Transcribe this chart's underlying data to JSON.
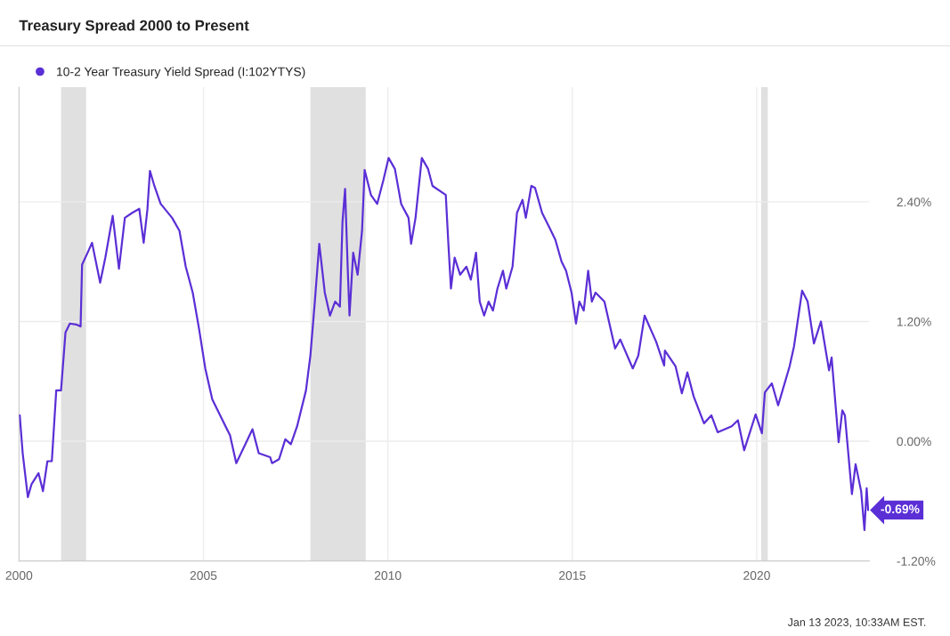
{
  "chart_data": {
    "type": "line",
    "title": "Treasury Spread 2000 to Present",
    "x": [
      2000.02,
      2000.1,
      2000.24,
      2000.34,
      2000.53,
      2000.65,
      2000.77,
      2000.89,
      2001.01,
      2001.14,
      2001.26,
      2001.38,
      2001.55,
      2001.67,
      2001.71,
      2001.86,
      2001.98,
      2002.2,
      2002.34,
      2002.54,
      2002.71,
      2002.87,
      2003.07,
      2003.26,
      2003.38,
      2003.48,
      2003.55,
      2003.67,
      2003.84,
      2004.15,
      2004.35,
      2004.52,
      2004.71,
      2004.88,
      2005.05,
      2005.24,
      2005.48,
      2005.72,
      2005.89,
      2006.33,
      2006.5,
      2006.81,
      2006.86,
      2007.05,
      2007.22,
      2007.37,
      2007.54,
      2007.78,
      2007.9,
      2008.02,
      2008.14,
      2008.29,
      2008.43,
      2008.57,
      2008.7,
      2008.77,
      2008.84,
      2008.91,
      2008.96,
      2009.06,
      2009.18,
      2009.3,
      2009.37,
      2009.54,
      2009.71,
      2009.88,
      2010.02,
      2010.19,
      2010.36,
      2010.56,
      2010.63,
      2010.75,
      2010.92,
      2011.09,
      2011.21,
      2011.57,
      2011.64,
      2011.71,
      2011.81,
      2011.96,
      2012.13,
      2012.25,
      2012.39,
      2012.49,
      2012.61,
      2012.73,
      2012.85,
      2012.97,
      2013.12,
      2013.21,
      2013.38,
      2013.5,
      2013.65,
      2013.74,
      2013.89,
      2013.99,
      2014.18,
      2014.37,
      2014.54,
      2014.71,
      2014.83,
      2014.98,
      2015.1,
      2015.19,
      2015.31,
      2015.43,
      2015.53,
      2015.63,
      2015.87,
      2016.16,
      2016.3,
      2016.64,
      2016.79,
      2016.96,
      2017.27,
      2017.49,
      2017.51,
      2017.8,
      2017.97,
      2018.12,
      2018.29,
      2018.57,
      2018.77,
      2018.94,
      2019.32,
      2019.49,
      2019.66,
      2019.97,
      2020.14,
      2020.22,
      2020.41,
      2020.58,
      2020.7,
      2020.89,
      2021.01,
      2021.23,
      2021.38,
      2021.55,
      2021.74,
      2021.96,
      2022.03,
      2022.22,
      2022.32,
      2022.39,
      2022.46,
      2022.58,
      2022.68,
      2022.83,
      2022.92,
      2022.98,
      2023.02
    ],
    "series": [
      {
        "name": "10-2 Year Treasury Yield Spread (I:102YTYS)",
        "color": "#5b2fd6",
        "values": [
          0.26,
          -0.12,
          -0.56,
          -0.43,
          -0.32,
          -0.5,
          -0.2,
          -0.2,
          0.51,
          0.51,
          1.09,
          1.18,
          1.17,
          1.15,
          1.77,
          1.89,
          1.99,
          1.59,
          1.84,
          2.26,
          1.73,
          2.24,
          2.29,
          2.33,
          1.99,
          2.32,
          2.71,
          2.56,
          2.38,
          2.24,
          2.11,
          1.75,
          1.49,
          1.13,
          0.73,
          0.42,
          0.24,
          0.06,
          -0.22,
          0.12,
          -0.12,
          -0.16,
          -0.22,
          -0.18,
          0.02,
          -0.03,
          0.15,
          0.51,
          0.86,
          1.4,
          1.98,
          1.49,
          1.26,
          1.4,
          1.35,
          2.2,
          2.53,
          1.75,
          1.26,
          1.89,
          1.67,
          2.11,
          2.72,
          2.47,
          2.38,
          2.62,
          2.84,
          2.73,
          2.38,
          2.24,
          1.98,
          2.24,
          2.84,
          2.73,
          2.56,
          2.47,
          1.98,
          1.53,
          1.84,
          1.67,
          1.75,
          1.62,
          1.89,
          1.4,
          1.26,
          1.4,
          1.31,
          1.53,
          1.71,
          1.53,
          1.75,
          2.29,
          2.42,
          2.24,
          2.56,
          2.54,
          2.29,
          2.15,
          2.02,
          1.8,
          1.71,
          1.49,
          1.18,
          1.4,
          1.31,
          1.71,
          1.4,
          1.49,
          1.4,
          0.93,
          1.02,
          0.73,
          0.86,
          1.26,
          1.0,
          0.76,
          0.91,
          0.75,
          0.48,
          0.69,
          0.45,
          0.18,
          0.26,
          0.09,
          0.15,
          0.21,
          -0.09,
          0.27,
          0.08,
          0.49,
          0.58,
          0.36,
          0.51,
          0.75,
          0.95,
          1.51,
          1.4,
          0.98,
          1.2,
          0.71,
          0.84,
          -0.01,
          0.31,
          0.26,
          -0.03,
          -0.53,
          -0.23,
          -0.5,
          -0.89,
          -0.47,
          -0.69
        ]
      }
    ],
    "xlim": [
      2000,
      2023.05
    ],
    "xticks": [
      2000,
      2005,
      2010,
      2015,
      2020
    ],
    "ylim": [
      -1.2,
      3.55
    ],
    "yticks": [
      {
        "value": -1.2,
        "label": "-1.20%"
      },
      {
        "value": 0,
        "label": "0.00%"
      },
      {
        "value": 1.2,
        "label": "1.20%"
      },
      {
        "value": 2.4,
        "label": "2.40%"
      }
    ],
    "bands": [
      {
        "axis": "x",
        "from": 2001.14,
        "to": 2001.82,
        "color": "#e0e0e0"
      },
      {
        "axis": "x",
        "from": 2007.9,
        "to": 2009.4,
        "color": "#e0e0e0"
      },
      {
        "axis": "x",
        "from": 2020.12,
        "to": 2020.3,
        "color": "#e0e0e0"
      }
    ],
    "annotations": [
      {
        "text": "-0.69%",
        "x": 2023.02,
        "y": -0.69
      },
      "Jan 13 2023, 10:33AM EST."
    ],
    "grid": true,
    "legend": "top left",
    "marker": "none",
    "line_style": "solid"
  }
}
